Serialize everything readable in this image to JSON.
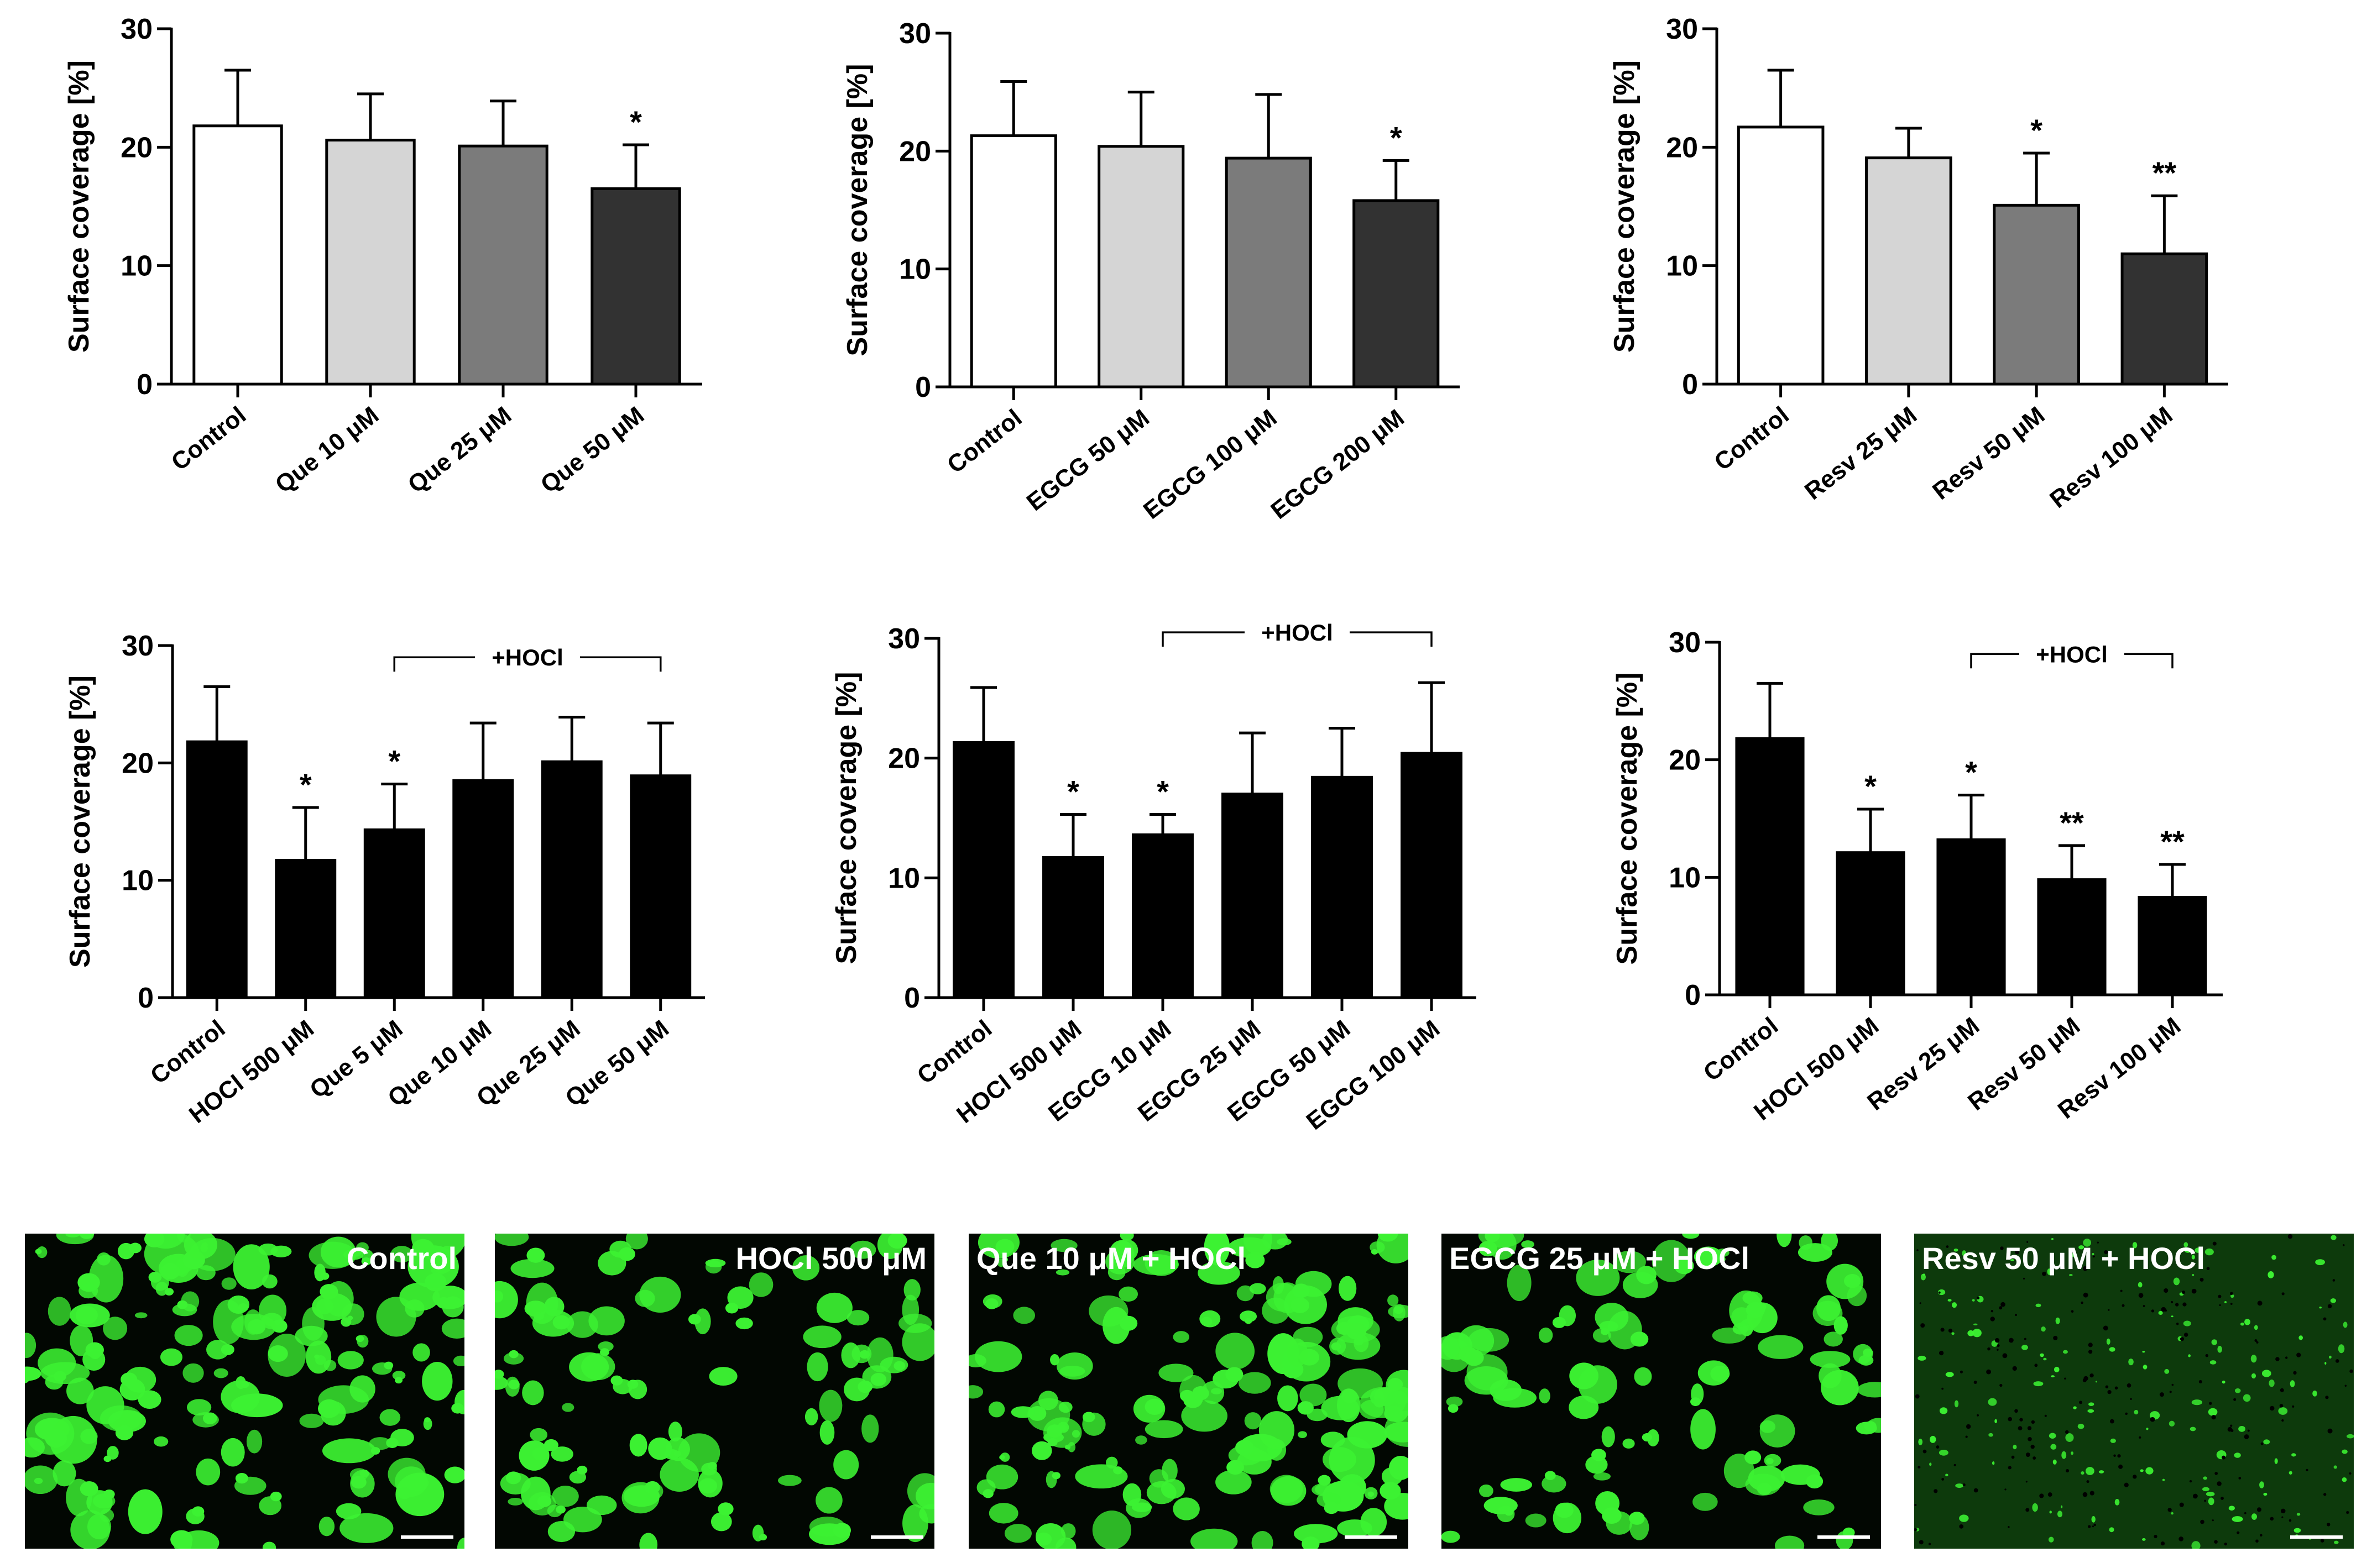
{
  "ylabel": "Surface coverage [%]",
  "bracket_label": "+HOCl",
  "colors": {
    "white": "#ffffff",
    "light": "#d5d5d5",
    "mid": "#7b7b7b",
    "dark": "#323232",
    "black": "#000000",
    "green": "#3cf232"
  },
  "chart_data": [
    {
      "type": "bar",
      "ylim": [
        0,
        30
      ],
      "yticks": [
        0,
        10,
        20,
        30
      ],
      "ylabel": "Surface coverage [%]",
      "categories": [
        "Control",
        "Que 10 μM",
        "Que 25 μM",
        "Que 50 μM"
      ],
      "values": [
        21.8,
        20.6,
        20.1,
        16.5
      ],
      "errors": [
        4.7,
        3.9,
        3.8,
        3.7
      ],
      "significance": [
        "",
        "",
        "",
        "*"
      ],
      "bar_colors": [
        "#ffffff",
        "#d5d5d5",
        "#7b7b7b",
        "#323232"
      ]
    },
    {
      "type": "bar",
      "ylim": [
        0,
        30
      ],
      "yticks": [
        0,
        10,
        20,
        30
      ],
      "ylabel": "Surface coverage [%]",
      "categories": [
        "Control",
        "EGCG 50 μM",
        "EGCG 100 μM",
        "EGCG 200 μM"
      ],
      "values": [
        21.3,
        20.4,
        19.4,
        15.8
      ],
      "errors": [
        4.6,
        4.6,
        5.4,
        3.4
      ],
      "significance": [
        "",
        "",
        "",
        "*"
      ],
      "bar_colors": [
        "#ffffff",
        "#d5d5d5",
        "#7b7b7b",
        "#323232"
      ]
    },
    {
      "type": "bar",
      "ylim": [
        0,
        30
      ],
      "yticks": [
        0,
        10,
        20,
        30
      ],
      "ylabel": "Surface coverage [%]",
      "categories": [
        "Control",
        "Resv 25 μM",
        "Resv 50 μM",
        "Resv 100 μM"
      ],
      "values": [
        21.7,
        19.1,
        15.1,
        11.0
      ],
      "errors": [
        4.8,
        2.5,
        4.4,
        4.9
      ],
      "significance": [
        "",
        "",
        "*",
        "**"
      ],
      "bar_colors": [
        "#ffffff",
        "#d5d5d5",
        "#7b7b7b",
        "#323232"
      ]
    },
    {
      "type": "bar",
      "ylim": [
        0,
        30
      ],
      "yticks": [
        0,
        10,
        20,
        30
      ],
      "ylabel": "Surface coverage [%]",
      "categories": [
        "Control",
        "HOCl 500 μM",
        "Que 5 μM",
        "Que 10 μM",
        "Que 25 μM",
        "Que 50 μM"
      ],
      "values": [
        21.8,
        11.7,
        14.3,
        18.5,
        20.1,
        18.9
      ],
      "errors": [
        4.7,
        4.5,
        3.9,
        4.9,
        3.8,
        4.5
      ],
      "significance": [
        "",
        "*",
        "*",
        "",
        "",
        ""
      ],
      "bar_colors": [
        "#000000",
        "#000000",
        "#000000",
        "#000000",
        "#000000",
        "#000000"
      ],
      "bracket": {
        "label": "+HOCl",
        "from": 2,
        "to": 5,
        "y": 29.0
      }
    },
    {
      "type": "bar",
      "ylim": [
        0,
        30
      ],
      "yticks": [
        0,
        10,
        20,
        30
      ],
      "ylabel": "Surface coverage [%]",
      "categories": [
        "Control",
        "HOCl 500 μM",
        "EGCG 10 μM",
        "EGCG 25 μM",
        "EGCG 50 μM",
        "EGCG 100 μM"
      ],
      "values": [
        21.3,
        11.7,
        13.6,
        17.0,
        18.4,
        20.4
      ],
      "errors": [
        4.6,
        3.6,
        1.7,
        5.1,
        4.1,
        5.9
      ],
      "significance": [
        "",
        "*",
        "*",
        "",
        "",
        ""
      ],
      "bar_colors": [
        "#000000",
        "#000000",
        "#000000",
        "#000000",
        "#000000",
        "#000000"
      ],
      "bracket": {
        "label": "+HOCl",
        "from": 2,
        "to": 5,
        "y": 30.5
      }
    },
    {
      "type": "bar",
      "ylim": [
        0,
        30
      ],
      "yticks": [
        0,
        10,
        20,
        30
      ],
      "ylabel": "Surface coverage [%]",
      "categories": [
        "Control",
        "HOCl 500 μM",
        "Resv 25 μM",
        "Resv 50 μM",
        "Resv 100 μM"
      ],
      "values": [
        21.8,
        12.1,
        13.2,
        9.8,
        8.3
      ],
      "errors": [
        4.7,
        3.7,
        3.8,
        2.9,
        2.8
      ],
      "significance": [
        "",
        "*",
        "*",
        "**",
        "**"
      ],
      "bar_colors": [
        "#000000",
        "#000000",
        "#000000",
        "#000000",
        "#000000"
      ],
      "bracket": {
        "label": "+HOCl",
        "from": 2,
        "to": 4,
        "y": 29.0
      }
    }
  ],
  "images": [
    {
      "label": "Control",
      "label_align": "right",
      "density": "high"
    },
    {
      "label": "HOCl 500 μM",
      "label_align": "right",
      "density": "medium"
    },
    {
      "label": "Que 10 μM + HOCl",
      "label_align": "left",
      "density": "high"
    },
    {
      "label": "EGCG 25 μM + HOCl",
      "label_align": "left",
      "density": "medium"
    },
    {
      "label": "Resv 50 μM + HOCl",
      "label_align": "left",
      "density": "low"
    }
  ]
}
